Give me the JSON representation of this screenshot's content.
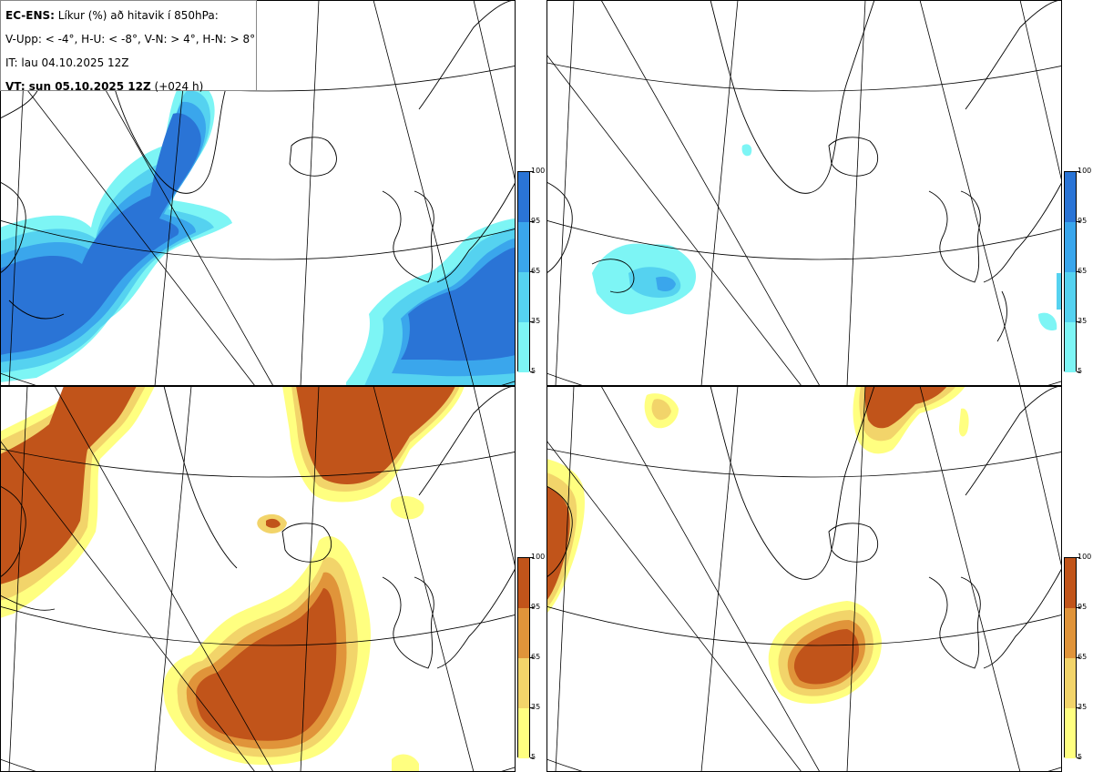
{
  "title": {
    "line1_bold": "EC-ENS:",
    "line1_rest": " Líkur (%) að hitavik í 850hPa:",
    "line2": "V-Upp: < -4°, H-U: < -8°, V-N: > 4°, H-N: > 8°",
    "line3": "IT: lau 04.10.2025 12Z",
    "line4_bold": "VT: sun 05.10.2025 12Z",
    "line4_rest": " (+024 h)"
  },
  "panels": [
    {
      "id": "V-Upp",
      "threshold": "< -4°",
      "palette": "blue"
    },
    {
      "id": "H-U",
      "threshold": "< -8°",
      "palette": "blue"
    },
    {
      "id": "V-N",
      "threshold": "> 4°",
      "palette": "orange"
    },
    {
      "id": "H-N",
      "threshold": "> 8°",
      "palette": "orange"
    }
  ],
  "colorbar": {
    "ticks": [
      "100",
      "95",
      "65",
      "35",
      "5"
    ],
    "levels": [
      5,
      35,
      65,
      95,
      100
    ],
    "blue_colors": [
      "#7df5f5",
      "#55d2f0",
      "#3aa6ec",
      "#2a74d6"
    ],
    "orange_colors": [
      "#ffff80",
      "#f2d46a",
      "#e0943a",
      "#c1541a"
    ]
  }
}
